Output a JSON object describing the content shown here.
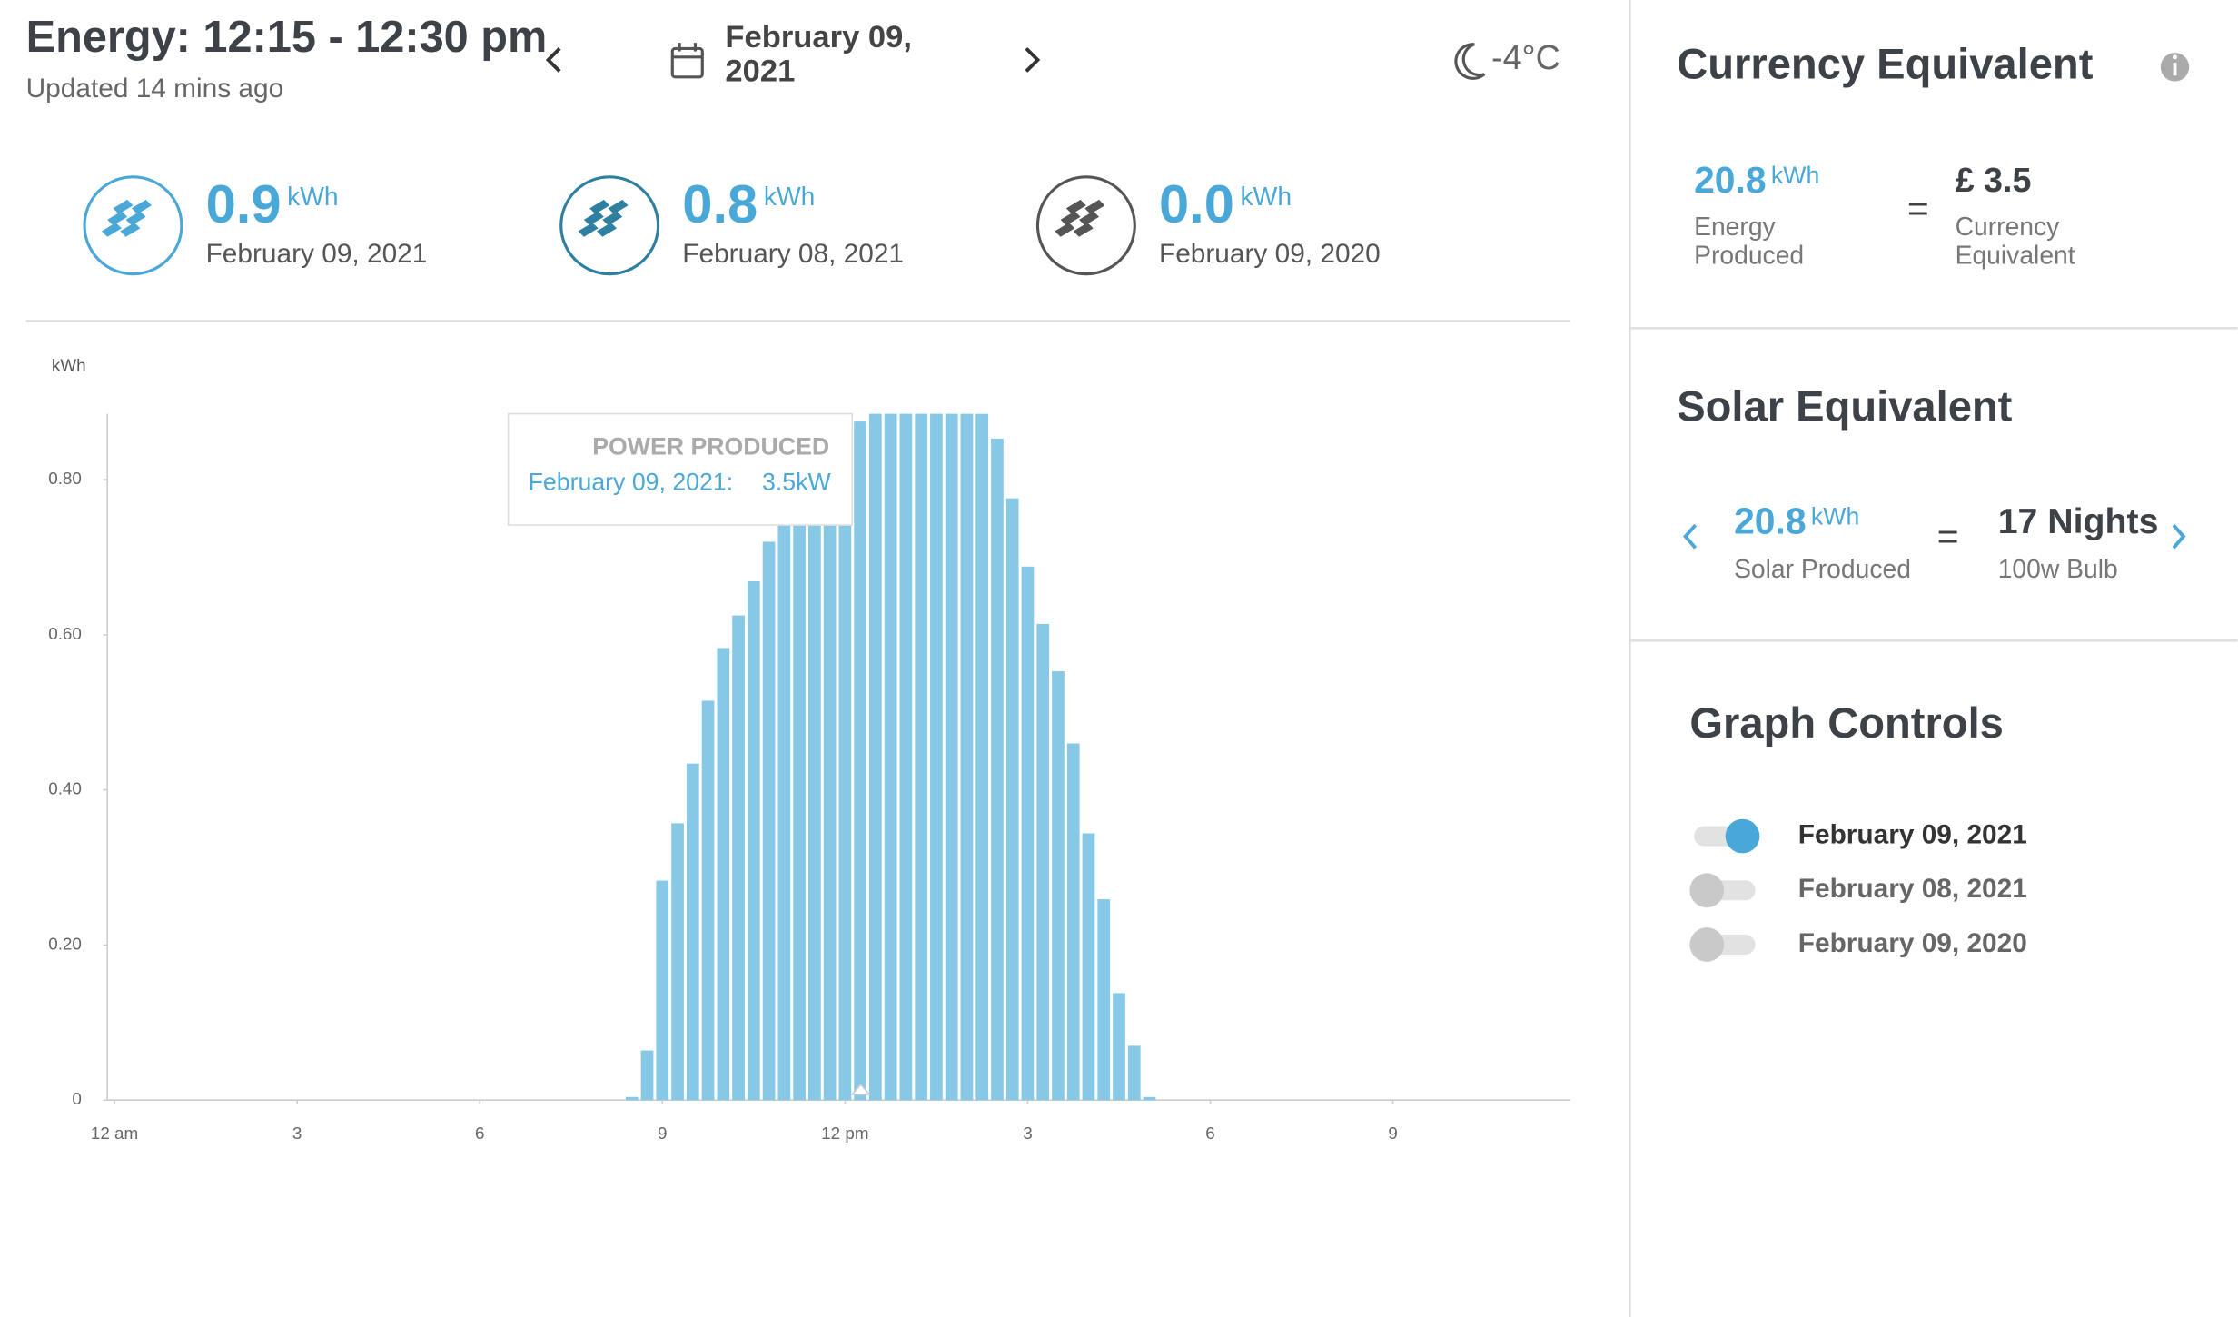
{
  "header": {
    "title": "Energy: 12:15 - 12:30 pm",
    "updated": "Updated 14 mins ago",
    "date": "February 09, 2021",
    "temperature": "-4°C"
  },
  "summary": [
    {
      "value": "0.9",
      "unit": "kWh",
      "date": "February 09, 2021"
    },
    {
      "value": "0.8",
      "unit": "kWh",
      "date": "February 08, 2021"
    },
    {
      "value": "0.0",
      "unit": "kWh",
      "date": "February 09, 2020"
    }
  ],
  "currency": {
    "title": "Currency Equivalent",
    "produced_value": "20.8",
    "unit": "kWh",
    "produced_label": "Energy Produced",
    "equals": "=",
    "amount": "£ 3.5",
    "amount_label": "Currency Equivalent"
  },
  "solar": {
    "title": "Solar Equivalent",
    "value": "20.8",
    "unit": "kWh",
    "label": "Solar Produced",
    "equals": "=",
    "result": "17 Nights",
    "result_label": "100w Bulb"
  },
  "graph_controls": {
    "title": "Graph Controls",
    "items": [
      {
        "label": "February 09, 2021",
        "on": true
      },
      {
        "label": "February 08, 2021",
        "on": false
      },
      {
        "label": "February 09, 2020",
        "on": false
      }
    ]
  },
  "tooltip": {
    "title": "POWER PRODUCED",
    "date": "February 09, 2021:",
    "value": "3.5kW"
  },
  "chart_data": {
    "type": "bar",
    "y_label": "kWh",
    "color": "#87c8e6",
    "grid": false,
    "x": [
      8.5,
      8.75,
      9,
      9.25,
      9.5,
      9.75,
      10,
      10.25,
      10.5,
      10.75,
      11,
      11.25,
      11.5,
      11.75,
      12,
      12.25,
      12.5,
      12.75,
      13,
      13.25,
      13.5,
      13.75,
      14,
      14.25,
      14.5,
      14.75,
      15,
      15.25,
      15.5,
      15.75,
      16,
      16.25,
      16.5,
      16.75,
      17
    ],
    "values": [
      0.004,
      0.064,
      0.283,
      0.357,
      0.434,
      0.515,
      0.583,
      0.625,
      0.669,
      0.72,
      0.76,
      0.79,
      0.82,
      0.84,
      0.86,
      0.875,
      0.89,
      0.9,
      0.91,
      0.91,
      0.9,
      0.9,
      0.89,
      0.885,
      0.853,
      0.776,
      0.688,
      0.614,
      0.553,
      0.46,
      0.344,
      0.259,
      0.138,
      0.07,
      0.004
    ],
    "xlim": [
      0,
      24
    ],
    "xticks": [
      {
        "value": 0,
        "label": "12 am"
      },
      3,
      6,
      9,
      {
        "value": 12,
        "label": "12 pm"
      },
      {
        "value": 15,
        "label": "3"
      },
      {
        "value": 18,
        "label": "6"
      },
      {
        "value": 21,
        "label": "9"
      }
    ],
    "ylim": [
      0,
      0.885
    ],
    "yticks": [
      0,
      {
        "value": 0.2,
        "label": "0.20"
      },
      {
        "value": 0.4,
        "label": "0.40"
      },
      {
        "value": 0.6,
        "label": "0.60"
      },
      {
        "value": 0.8,
        "label": "0.80"
      }
    ]
  }
}
